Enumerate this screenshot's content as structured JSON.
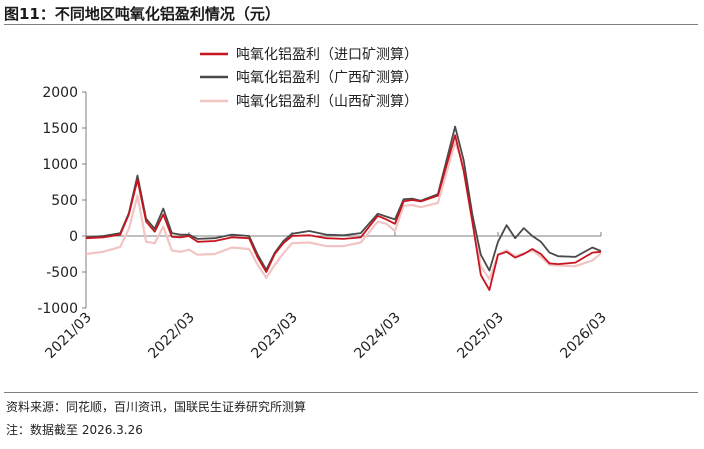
{
  "figure": {
    "title": "图11：不同地区吨氧化铝盈利情况（元）",
    "source": "资料来源：同花顺，百川资讯，国联民生证券研究所测算",
    "note": "注：数据截至 2026.3.26"
  },
  "chart_data": {
    "type": "line",
    "title": "",
    "xlabel": "",
    "ylabel": "",
    "ylim": [
      -1000,
      2000
    ],
    "yticks": [
      -1000,
      -500,
      0,
      500,
      1000,
      1500,
      2000
    ],
    "xlim": [
      "2021-03",
      "2026-03"
    ],
    "xticks": [
      "2021/03",
      "2022/03",
      "2023/03",
      "2024/03",
      "2025/03",
      "2026/03"
    ],
    "grid": false,
    "legend": "top-center",
    "series": [
      {
        "name": "吨氧化铝盈利（进口矿测算）",
        "color": "#c8141e",
        "x": [
          "2021-03",
          "2021-05",
          "2021-07",
          "2021-08",
          "2021-09",
          "2021-10",
          "2021-11",
          "2021-12",
          "2022-01",
          "2022-02",
          "2022-03",
          "2022-04",
          "2022-06",
          "2022-08",
          "2022-10",
          "2022-11",
          "2022-12",
          "2023-01",
          "2023-02",
          "2023-03",
          "2023-05",
          "2023-07",
          "2023-09",
          "2023-11",
          "2024-01",
          "2024-02",
          "2024-03",
          "2024-04",
          "2024-05",
          "2024-06",
          "2024-08",
          "2024-10",
          "2024-11",
          "2024-12",
          "2025-01",
          "2025-02",
          "2025-03",
          "2025-04",
          "2025-05",
          "2025-06",
          "2025-07",
          "2025-08",
          "2025-09",
          "2025-10",
          "2025-12",
          "2026-02",
          "2026-03"
        ],
        "y": [
          -30,
          -20,
          20,
          300,
          780,
          200,
          60,
          300,
          -10,
          -20,
          0,
          -80,
          -70,
          -20,
          -30,
          -300,
          -500,
          -250,
          -100,
          0,
          10,
          -30,
          -40,
          -20,
          280,
          230,
          170,
          480,
          500,
          480,
          560,
          1400,
          900,
          200,
          -540,
          -750,
          -260,
          -220,
          -300,
          -250,
          -180,
          -250,
          -380,
          -390,
          -370,
          -230,
          -220
        ]
      },
      {
        "name": "吨氧化铝盈利（广西矿测算）",
        "color": "#4a4a4a",
        "x": [
          "2021-03",
          "2021-05",
          "2021-07",
          "2021-08",
          "2021-09",
          "2021-10",
          "2021-11",
          "2021-12",
          "2022-01",
          "2022-02",
          "2022-03",
          "2022-04",
          "2022-06",
          "2022-08",
          "2022-10",
          "2022-11",
          "2022-12",
          "2023-01",
          "2023-02",
          "2023-03",
          "2023-05",
          "2023-07",
          "2023-09",
          "2023-11",
          "2024-01",
          "2024-02",
          "2024-03",
          "2024-04",
          "2024-05",
          "2024-06",
          "2024-08",
          "2024-10",
          "2024-11",
          "2024-12",
          "2025-01",
          "2025-02",
          "2025-03",
          "2025-04",
          "2025-05",
          "2025-06",
          "2025-07",
          "2025-08",
          "2025-09",
          "2025-10",
          "2025-12",
          "2026-02",
          "2026-03"
        ],
        "y": [
          -20,
          0,
          40,
          320,
          840,
          240,
          100,
          380,
          40,
          20,
          20,
          -40,
          -30,
          20,
          0,
          -260,
          -470,
          -230,
          -70,
          30,
          70,
          20,
          10,
          40,
          310,
          270,
          230,
          510,
          520,
          490,
          580,
          1520,
          1050,
          300,
          -260,
          -480,
          -80,
          150,
          -30,
          110,
          0,
          -80,
          -230,
          -280,
          -290,
          -160,
          -210
        ]
      },
      {
        "name": "吨氧化铝盈利（山西矿测算）",
        "color": "#f2c4c4",
        "x": [
          "2021-03",
          "2021-05",
          "2021-07",
          "2021-08",
          "2021-09",
          "2021-10",
          "2021-11",
          "2021-12",
          "2022-01",
          "2022-02",
          "2022-03",
          "2022-04",
          "2022-06",
          "2022-08",
          "2022-10",
          "2022-11",
          "2022-12",
          "2023-01",
          "2023-02",
          "2023-03",
          "2023-05",
          "2023-07",
          "2023-09",
          "2023-11",
          "2024-01",
          "2024-02",
          "2024-03",
          "2024-04",
          "2024-05",
          "2024-06",
          "2024-08",
          "2024-10",
          "2024-11",
          "2024-12",
          "2025-01",
          "2025-02",
          "2025-03",
          "2025-04",
          "2025-05",
          "2025-06",
          "2025-07",
          "2025-08",
          "2025-09",
          "2025-10",
          "2025-12",
          "2026-02",
          "2026-03"
        ],
        "y": [
          -250,
          -220,
          -150,
          100,
          560,
          -80,
          -100,
          130,
          -200,
          -220,
          -190,
          -260,
          -250,
          -160,
          -180,
          -400,
          -580,
          -400,
          -240,
          -100,
          -90,
          -140,
          -140,
          -90,
          200,
          170,
          70,
          420,
          430,
          400,
          460,
          1300,
          1000,
          300,
          -420,
          -600,
          -260,
          -200,
          -280,
          -240,
          -200,
          -290,
          -400,
          -410,
          -420,
          -340,
          -240
        ]
      }
    ]
  }
}
